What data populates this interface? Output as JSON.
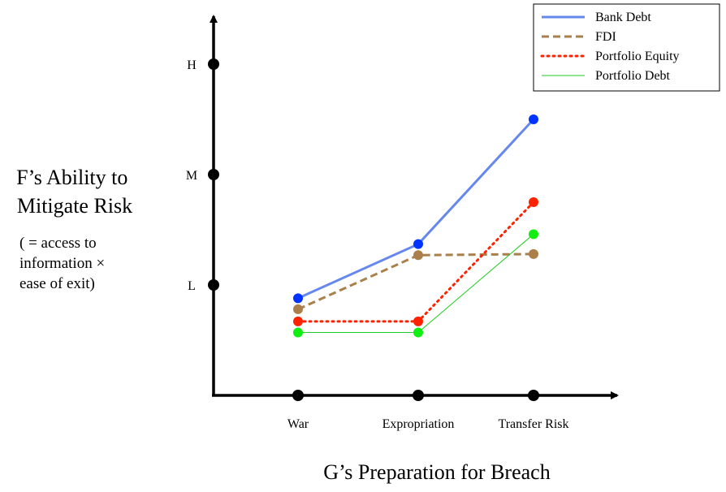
{
  "chart_data": {
    "type": "line",
    "categories": [
      "War",
      "Expropriation",
      "Transfer Risk"
    ],
    "y_ticks": [
      {
        "label": "L",
        "value": 1
      },
      {
        "label": "M",
        "value": 2
      },
      {
        "label": "H",
        "value": 3
      }
    ],
    "ylim": [
      0,
      3.7
    ],
    "xlabel": "G’s Preparation for Breach",
    "ylabel_lines": [
      "F’s Ability to",
      "Mitigate Risk"
    ],
    "ylabel_note_lines": [
      "( = access to",
      "information ×",
      "ease of exit)"
    ],
    "legend_position": "top-right",
    "series": [
      {
        "name": "Bank Debt",
        "values": [
          0.88,
          1.37,
          2.5
        ],
        "color": "#6688ee",
        "marker_color": "#0033ff",
        "style": "solid",
        "width": 3
      },
      {
        "name": "FDI",
        "values": [
          0.78,
          1.27,
          1.28
        ],
        "color": "#aa7f4a",
        "marker_color": "#aa7f4a",
        "style": "dashed",
        "width": 3
      },
      {
        "name": "Portfolio Equity",
        "values": [
          0.67,
          0.67,
          1.75
        ],
        "color": "#ff2200",
        "marker_color": "#ff2200",
        "style": "dotted",
        "width": 3
      },
      {
        "name": "Portfolio Debt",
        "values": [
          0.57,
          0.57,
          1.46
        ],
        "color": "#22cc22",
        "marker_color": "#11ee11",
        "style": "thin",
        "width": 1
      }
    ]
  }
}
